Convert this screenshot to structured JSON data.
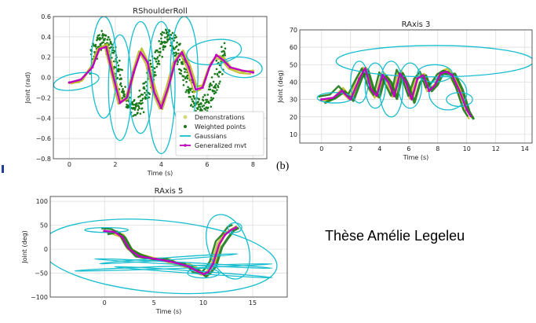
{
  "caption": "Thèse Amélie Legeleu",
  "panel_label": "(b)",
  "colors": {
    "demonstrations": "#bcbd22",
    "weighted_points": "#1a7a1a",
    "gaussians": "#17becf",
    "generalized": "#c000c0",
    "grid": "#d8d8d8"
  },
  "chart_data": [
    {
      "id": "rshoulder",
      "type": "line",
      "title": "RShoulderRoll",
      "xlabel": "Time (s)",
      "ylabel": "Joint (rad)",
      "xlim": [
        -0.7,
        8.6
      ],
      "ylim": [
        -0.8,
        0.6
      ],
      "xticks": [
        0,
        2,
        4,
        6,
        8
      ],
      "yticks": [
        -0.8,
        -0.6,
        -0.4,
        -0.2,
        0.0,
        0.2,
        0.4,
        0.6
      ],
      "ytick_labels": [
        "−0.8",
        "−0.6",
        "−0.4",
        "−0.2",
        "0.0",
        "0.2",
        "0.4",
        "0.6"
      ],
      "grid": true,
      "legend": {
        "position": "lower-right",
        "entries": [
          "Demonstrations",
          "Weighted points",
          "Gaussians",
          "Generalized mvt"
        ]
      },
      "generalized": {
        "x": [
          0.0,
          0.5,
          1.0,
          1.3,
          1.6,
          1.9,
          2.2,
          2.5,
          2.8,
          3.1,
          3.4,
          3.7,
          4.0,
          4.3,
          4.6,
          4.9,
          5.2,
          5.5,
          5.8,
          6.1,
          6.4,
          6.7,
          7.0,
          7.5,
          8.0
        ],
        "y": [
          -0.05,
          -0.02,
          0.1,
          0.28,
          0.3,
          0.02,
          -0.25,
          -0.2,
          0.05,
          0.25,
          0.15,
          -0.15,
          -0.3,
          -0.1,
          0.15,
          0.25,
          0.1,
          -0.12,
          -0.1,
          0.1,
          0.22,
          0.17,
          0.1,
          0.07,
          0.05
        ]
      },
      "weighted_points": {
        "amplitude": 0.3,
        "x_range": [
          0.9,
          6.8
        ]
      },
      "gaussians": [
        {
          "cx": 0.3,
          "cy": -0.04,
          "rx": 1.0,
          "ry": 0.08,
          "angle": 10
        },
        {
          "cx": 1.5,
          "cy": 0.1,
          "rx": 0.55,
          "ry": 0.5,
          "angle": 0
        },
        {
          "cx": 2.2,
          "cy": -0.1,
          "rx": 0.5,
          "ry": 0.52,
          "angle": 0
        },
        {
          "cx": 3.1,
          "cy": 0.0,
          "rx": 0.55,
          "ry": 0.55,
          "angle": 0
        },
        {
          "cx": 4.0,
          "cy": -0.1,
          "rx": 0.6,
          "ry": 0.65,
          "angle": 0
        },
        {
          "cx": 5.0,
          "cy": 0.05,
          "rx": 0.6,
          "ry": 0.55,
          "angle": 0
        },
        {
          "cx": 6.3,
          "cy": 0.25,
          "rx": 1.2,
          "ry": 0.12,
          "angle": 8
        },
        {
          "cx": 7.5,
          "cy": 0.1,
          "rx": 0.9,
          "ry": 0.1,
          "angle": -5
        }
      ]
    },
    {
      "id": "raxis3",
      "type": "line",
      "title": "RAxis 3",
      "xlabel": "Time (s)",
      "ylabel": "Joint (deg)",
      "xlim": [
        -1.5,
        14.5
      ],
      "ylim": [
        5,
        70
      ],
      "xticks": [
        0,
        2,
        4,
        6,
        8,
        10,
        12,
        14
      ],
      "yticks": [
        10,
        20,
        30,
        40,
        50,
        60,
        70
      ],
      "grid": true,
      "generalized": {
        "x": [
          0.0,
          0.8,
          1.4,
          2.0,
          2.6,
          3.0,
          3.4,
          3.8,
          4.2,
          4.6,
          5.0,
          5.4,
          5.8,
          6.2,
          6.6,
          7.0,
          7.4,
          7.8,
          8.2,
          8.6,
          9.0,
          9.5,
          10.0,
          10.3
        ],
        "y": [
          30,
          31,
          35,
          30,
          42,
          48,
          36,
          32,
          44,
          40,
          32,
          45,
          40,
          30,
          42,
          44,
          35,
          38,
          45,
          46,
          44,
          35,
          24,
          20
        ]
      },
      "gaussians": [
        {
          "cx": 0.9,
          "cy": 31,
          "rx": 1.2,
          "ry": 3,
          "angle": 0
        },
        {
          "cx": 2.6,
          "cy": 40,
          "rx": 0.6,
          "ry": 12,
          "angle": 0
        },
        {
          "cx": 3.7,
          "cy": 38,
          "rx": 0.7,
          "ry": 13,
          "angle": 0
        },
        {
          "cx": 4.8,
          "cy": 36,
          "rx": 0.8,
          "ry": 16,
          "angle": 0
        },
        {
          "cx": 6.1,
          "cy": 38,
          "rx": 0.8,
          "ry": 13,
          "angle": 0
        },
        {
          "cx": 7.8,
          "cy": 45,
          "rx": 1.2,
          "ry": 5,
          "angle": 0
        },
        {
          "cx": 8.7,
          "cy": 34,
          "rx": 1.3,
          "ry": 10,
          "angle": 0
        },
        {
          "cx": 7.8,
          "cy": 52,
          "rx": 6.8,
          "ry": 9,
          "angle": 0
        },
        {
          "cx": 9.5,
          "cy": 30,
          "rx": 0.9,
          "ry": 4,
          "angle": 0
        }
      ]
    },
    {
      "id": "raxis5",
      "type": "line",
      "title": "RAxis 5",
      "xlabel": "Time (s)",
      "ylabel": "Joint (deg)",
      "xlim": [
        -5.5,
        18.5
      ],
      "ylim": [
        -100,
        110
      ],
      "xticks": [
        0,
        5,
        10,
        15
      ],
      "yticks": [
        -100,
        -50,
        0,
        50,
        100
      ],
      "ytick_labels": [
        "−100",
        "−50",
        "0",
        "50",
        "100"
      ],
      "grid": true,
      "generalized": {
        "x": [
          0.0,
          1.0,
          1.8,
          2.5,
          3.5,
          5.0,
          6.5,
          7.5,
          8.5,
          9.3,
          10.0,
          10.5,
          11.0,
          11.6,
          12.2,
          12.8,
          13.3
        ],
        "y": [
          38,
          36,
          25,
          0,
          -15,
          -20,
          -25,
          -30,
          -36,
          -45,
          -52,
          -48,
          -30,
          10,
          30,
          40,
          45
        ]
      },
      "gaussians": [
        {
          "cx": 0.2,
          "cy": 40,
          "rx": 2.2,
          "ry": 5,
          "angle": 0
        },
        {
          "cx": 5.5,
          "cy": -15,
          "rx": 12,
          "ry": 75,
          "angle": -5
        },
        {
          "cx": 7.0,
          "cy": -38,
          "rx": 10,
          "ry": 2.5,
          "angle": 2
        },
        {
          "cx": 8.0,
          "cy": -30,
          "rx": 9,
          "ry": 2.5,
          "angle": -3
        },
        {
          "cx": 6.5,
          "cy": -20,
          "rx": 7,
          "ry": 2.5,
          "angle": 4
        },
        {
          "cx": 9.0,
          "cy": -48,
          "rx": 8,
          "ry": 2.5,
          "angle": -4
        },
        {
          "cx": 10.0,
          "cy": -50,
          "rx": 1.6,
          "ry": 10,
          "angle": 0
        },
        {
          "cx": 12.5,
          "cy": 5,
          "rx": 2.0,
          "ry": 70,
          "angle": 20
        },
        {
          "cx": 13.2,
          "cy": 45,
          "rx": 0.7,
          "ry": 10,
          "angle": 0
        }
      ]
    }
  ]
}
